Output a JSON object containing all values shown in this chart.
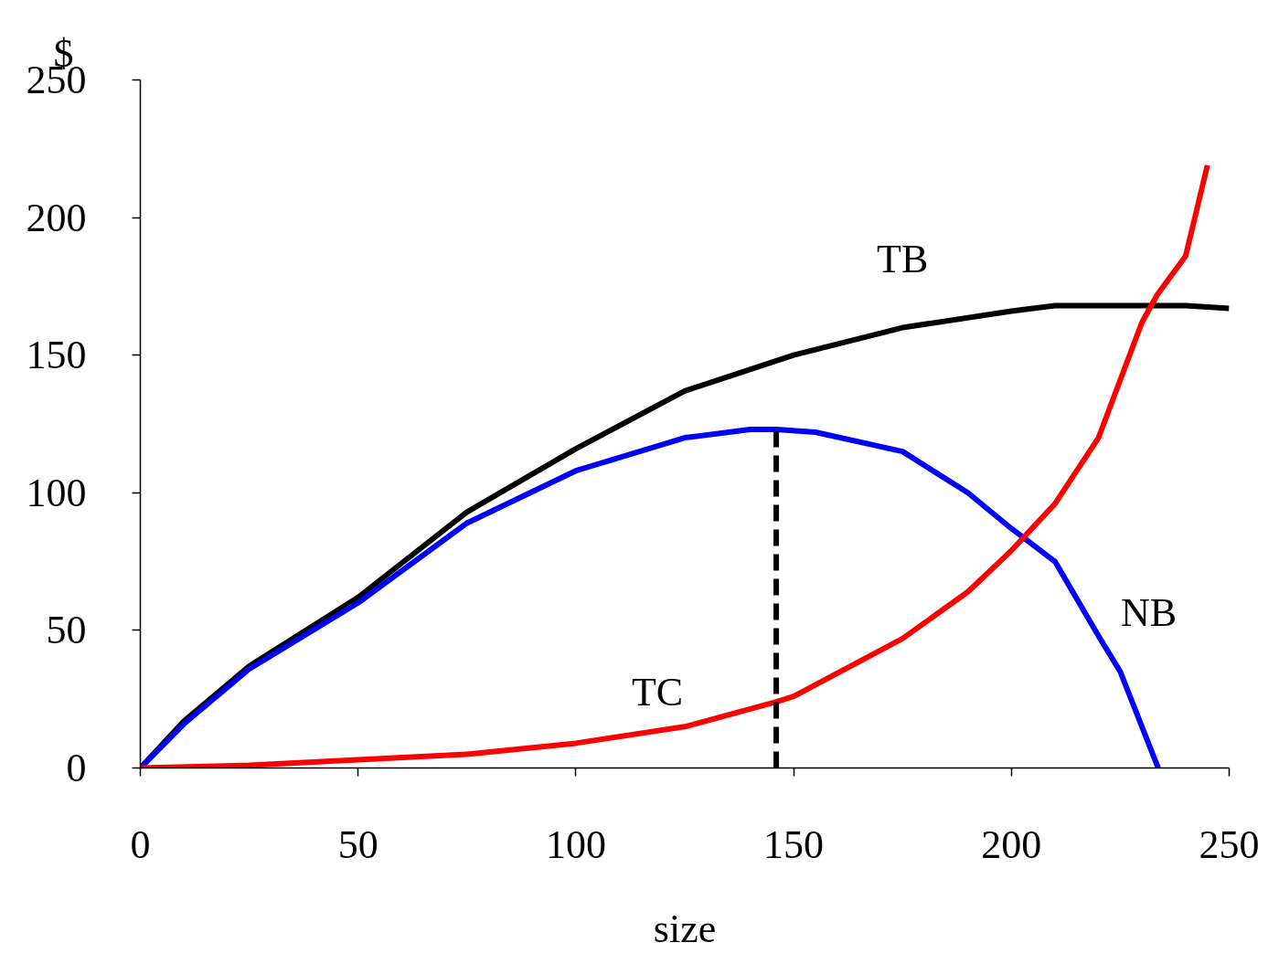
{
  "chart_data": {
    "type": "line",
    "xlabel": "size",
    "ylabel": "$",
    "xlim": [
      0,
      250
    ],
    "ylim": [
      0,
      250
    ],
    "xticks": [
      0,
      50,
      100,
      150,
      200,
      250
    ],
    "yticks": [
      0,
      50,
      100,
      150,
      200,
      250
    ],
    "grid": false,
    "marker": "none",
    "line_style": "solid",
    "series": [
      {
        "name": "TB",
        "color": "#000000",
        "x": [
          0,
          10,
          25,
          50,
          75,
          100,
          125,
          150,
          175,
          200,
          210,
          220,
          240,
          250
        ],
        "values": [
          0,
          17,
          37,
          62,
          93,
          116,
          137,
          150,
          160,
          166,
          168,
          168,
          168,
          167
        ]
      },
      {
        "name": "NB",
        "color": "#0000ff",
        "x": [
          0,
          10,
          25,
          50,
          75,
          100,
          125,
          140,
          146,
          155,
          175,
          190,
          200,
          210,
          220,
          225,
          233.7
        ],
        "values": [
          0,
          16,
          36,
          60,
          89,
          108,
          120,
          123,
          123,
          122,
          115,
          100,
          87,
          75,
          48,
          35,
          0
        ]
      },
      {
        "name": "TC",
        "color": "#ff0000",
        "x": [
          0,
          25,
          50,
          75,
          100,
          125,
          146,
          150,
          175,
          190,
          200,
          210,
          220,
          230,
          233.5,
          240,
          245
        ],
        "values": [
          0,
          1,
          3,
          5,
          9,
          15,
          24,
          26,
          47,
          64,
          79,
          96,
          120,
          162,
          172,
          186,
          219
        ]
      },
      {
        "type": "line",
        "color": "#000000",
        "line_style": "dashed",
        "x": [
          146,
          146
        ],
        "values": [
          0,
          123
        ]
      }
    ]
  }
}
